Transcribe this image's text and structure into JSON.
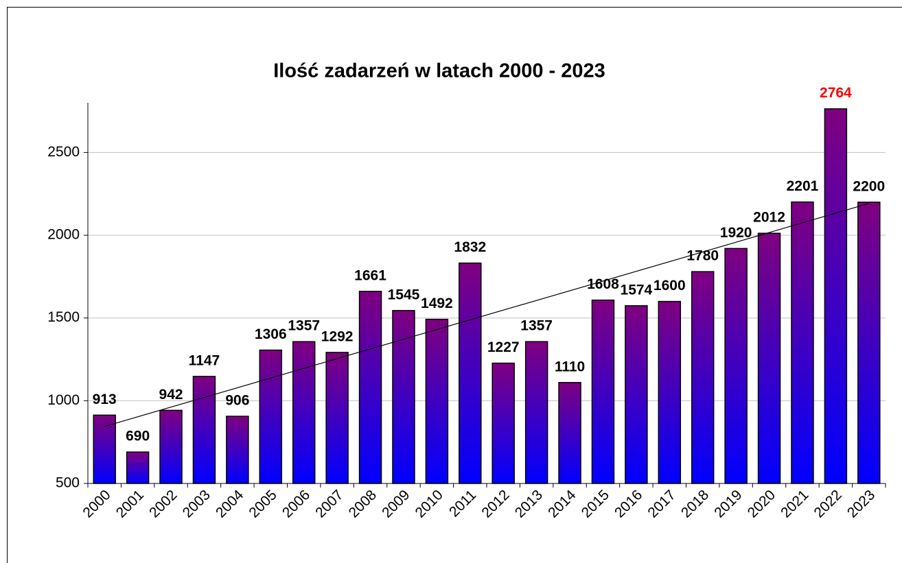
{
  "chart_data": {
    "type": "bar",
    "title": "Ilość zadarzeń w latach 2000 - 2023",
    "categories": [
      "2000",
      "2001",
      "2002",
      "2003",
      "2004",
      "2005",
      "2006",
      "2007",
      "2008",
      "2009",
      "2010",
      "2011",
      "2012",
      "2013",
      "2014",
      "2015",
      "2016",
      "2017",
      "2018",
      "2019",
      "2020",
      "2021",
      "2022",
      "2023"
    ],
    "values": [
      913,
      690,
      942,
      1147,
      906,
      1306,
      1357,
      1292,
      1661,
      1545,
      1492,
      1832,
      1227,
      1357,
      1110,
      1608,
      1574,
      1600,
      1780,
      1920,
      2012,
      2201,
      2764,
      2200
    ],
    "color": {
      "top": "#800080",
      "bottom": "#0000ff"
    },
    "label_color": "#000000",
    "highlight": {
      "category": "2022",
      "color": "#ff0000"
    },
    "trendline": "linear",
    "ylim": [
      500,
      2800
    ],
    "yticks": [
      500,
      1000,
      1500,
      2000,
      2500
    ],
    "grid": true
  }
}
